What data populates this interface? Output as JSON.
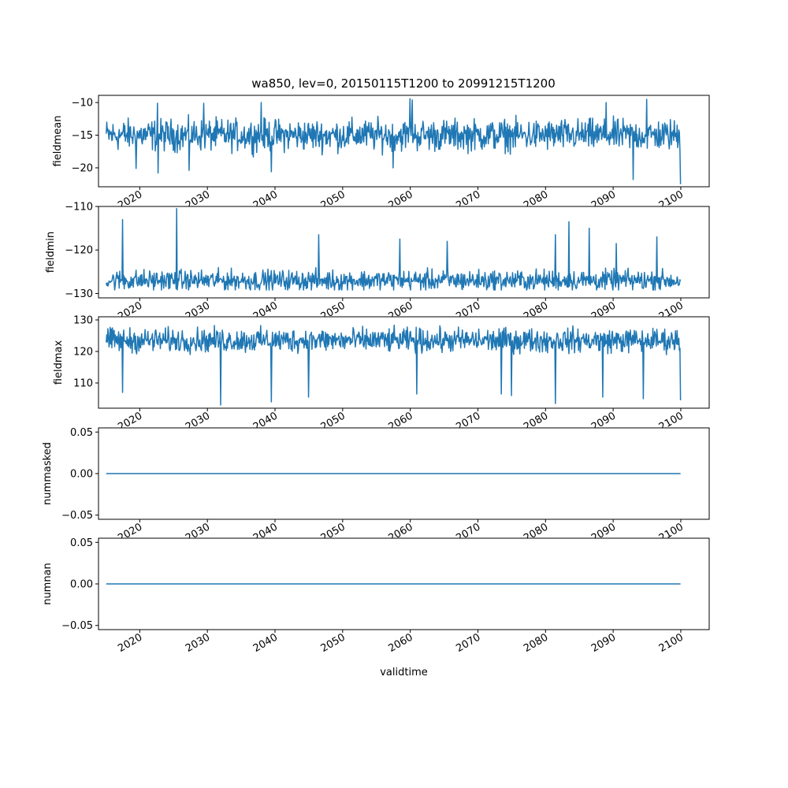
{
  "figure": {
    "title": "wa850, lev=0, 20150115T1200 to 20991215T1200"
  },
  "chart_data": {
    "type": "line",
    "title": "wa850, lev=0, 20150115T1200 to 20991215T1200",
    "xlabel": "validtime",
    "line_color": "#1f77b4",
    "grid": false,
    "legend": "none",
    "x_range": [
      "2015-01-15T12:00",
      "2099-12-15T12:00"
    ],
    "x_sampling": "monthly",
    "xlim": [
      2013.9,
      2104.2
    ],
    "xticks": [
      2020,
      2030,
      2040,
      2050,
      2060,
      2070,
      2080,
      2090,
      2100
    ],
    "xtick_labels": [
      "2020",
      "2030",
      "2040",
      "2050",
      "2060",
      "2070",
      "2080",
      "2090",
      "2100"
    ],
    "panels": [
      {
        "ylabel": "fieldmean",
        "ylim": [
          -22.9,
          -8.9
        ],
        "yticks": [
          -10,
          -15,
          -20
        ],
        "ytick_labels": [
          "−10",
          "−15",
          "−20"
        ],
        "series": {
          "min": -22.5,
          "max": -9.3,
          "center": -15.0,
          "amplitude": 2.2,
          "peaks": [
            [
              2060.0,
              -9.4
            ],
            [
              2095.0,
              -9.5
            ],
            [
              2060.3,
              -9.6
            ],
            [
              2038.0,
              -10.0
            ],
            [
              2089.0,
              -10.0
            ],
            [
              2022.6,
              -10.1
            ],
            [
              2029.5,
              -10.1
            ]
          ],
          "troughs": [
            [
              2100.0,
              -22.5
            ],
            [
              2093.0,
              -21.8
            ],
            [
              2022.7,
              -20.8
            ],
            [
              2039.5,
              -20.6
            ],
            [
              2027.3,
              -20.4
            ],
            [
              2019.5,
              -20.1
            ],
            [
              2057.5,
              -20.0
            ]
          ]
        }
      },
      {
        "ylabel": "fieldmin",
        "ylim": [
          -131.0,
          -110.0
        ],
        "yticks": [
          -110,
          -120,
          -130
        ],
        "ytick_labels": [
          "−110",
          "−120",
          "−130"
        ],
        "series": {
          "min": -130.0,
          "max": -110.5,
          "center": -127.0,
          "amplitude": 2.2,
          "peaks": [
            [
              2025.5,
              -110.5
            ],
            [
              2017.5,
              -113.0
            ],
            [
              2083.5,
              -113.5
            ],
            [
              2086.5,
              -115.0
            ],
            [
              2081.5,
              -116.5
            ],
            [
              2046.5,
              -116.5
            ],
            [
              2096.5,
              -117.0
            ],
            [
              2058.5,
              -117.5
            ],
            [
              2065.5,
              -118.0
            ],
            [
              2090.5,
              -118.5
            ]
          ],
          "troughs": []
        }
      },
      {
        "ylabel": "fieldmax",
        "ylim": [
          102.0,
          131.0
        ],
        "yticks": [
          110,
          120,
          130
        ],
        "ytick_labels": [
          "110",
          "120",
          "130"
        ],
        "series": {
          "min": 103.0,
          "max": 130.0,
          "center": 123.5,
          "amplitude": 3.5,
          "peaks": [],
          "troughs": [
            [
              2032.0,
              103.0
            ],
            [
              2081.5,
              103.5
            ],
            [
              2039.5,
              104.0
            ],
            [
              2100.0,
              104.5
            ],
            [
              2094.5,
              105.0
            ],
            [
              2088.5,
              105.5
            ],
            [
              2045.0,
              105.5
            ],
            [
              2075.0,
              106.0
            ],
            [
              2017.5,
              107.0
            ],
            [
              2073.5,
              106.5
            ],
            [
              2061.0,
              106.5
            ]
          ]
        }
      },
      {
        "ylabel": "nummasked",
        "ylim": [
          -0.055,
          0.055
        ],
        "yticks": [
          0.05,
          0.0,
          -0.05
        ],
        "ytick_labels": [
          "0.05",
          "0.00",
          "−0.05"
        ],
        "series": {
          "constant": 0.0
        }
      },
      {
        "ylabel": "numnan",
        "ylim": [
          -0.055,
          0.055
        ],
        "yticks": [
          0.05,
          0.0,
          -0.05
        ],
        "ytick_labels": [
          "0.05",
          "0.00",
          "−0.05"
        ],
        "series": {
          "constant": 0.0
        }
      }
    ]
  }
}
